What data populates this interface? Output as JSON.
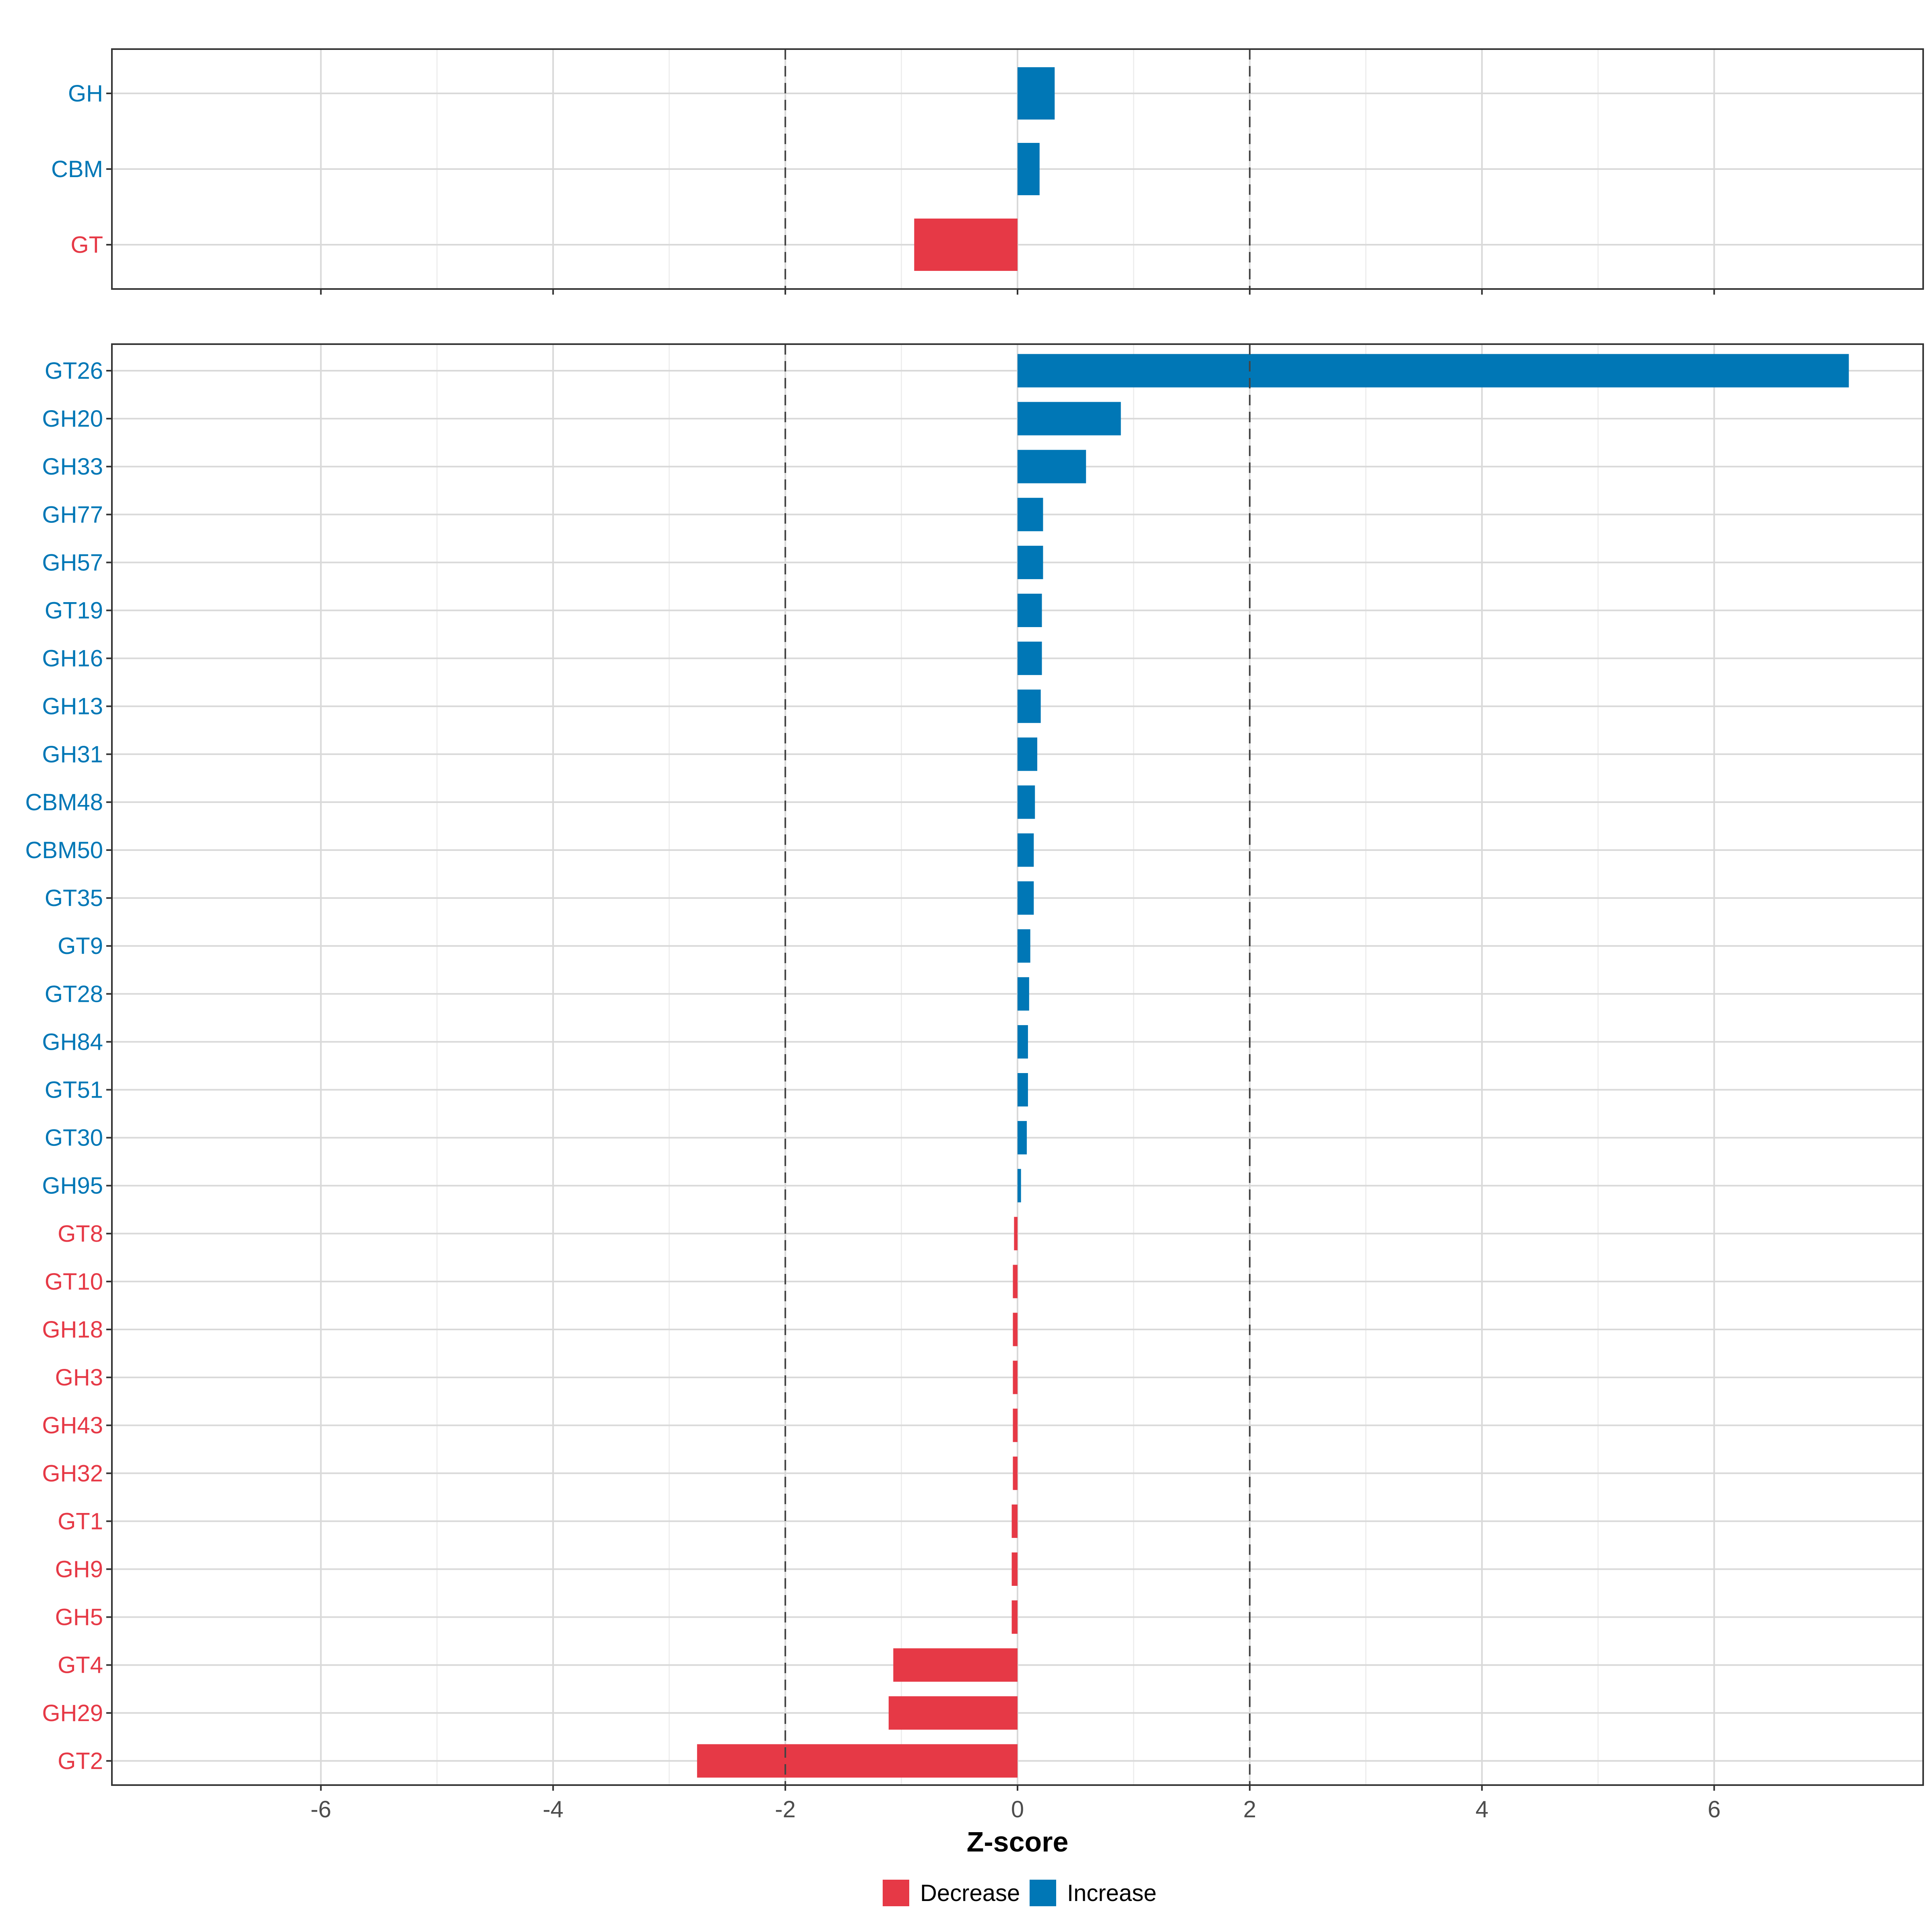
{
  "chart_data": {
    "type": "bar",
    "orientation": "horizontal",
    "xlabel": "Z-score",
    "xlim": [
      -7.8,
      7.8
    ],
    "xticks": [
      -6,
      -4,
      -2,
      0,
      2,
      4,
      6
    ],
    "reference_lines": [
      -2,
      2
    ],
    "grid": true,
    "colors": {
      "Decrease": "#E63946",
      "Increase": "#0077B6"
    },
    "legend": {
      "position": "bottom",
      "items": [
        {
          "label": "Decrease",
          "color": "#E63946"
        },
        {
          "label": "Increase",
          "color": "#0077B6"
        }
      ]
    },
    "panels": [
      {
        "categories": [
          "GH",
          "CBM",
          "GT"
        ],
        "values": [
          0.32,
          0.19,
          -0.89
        ]
      },
      {
        "categories": [
          "GT26",
          "GH20",
          "GH33",
          "GH77",
          "GH57",
          "GT19",
          "GH16",
          "GH13",
          "GH31",
          "CBM48",
          "CBM50",
          "GT35",
          "GT9",
          "GT28",
          "GH84",
          "GT51",
          "GT30",
          "GH95",
          "GT8",
          "GT10",
          "GH18",
          "GH3",
          "GH43",
          "GH32",
          "GT1",
          "GH9",
          "GH5",
          "GT4",
          "GH29",
          "GT2"
        ],
        "values": [
          7.16,
          0.89,
          0.59,
          0.22,
          0.22,
          0.21,
          0.21,
          0.2,
          0.17,
          0.15,
          0.14,
          0.14,
          0.11,
          0.1,
          0.09,
          0.09,
          0.08,
          0.03,
          -0.03,
          -0.04,
          -0.04,
          -0.04,
          -0.04,
          -0.04,
          -0.05,
          -0.05,
          -0.05,
          -1.07,
          -1.11,
          -2.76
        ]
      }
    ]
  }
}
